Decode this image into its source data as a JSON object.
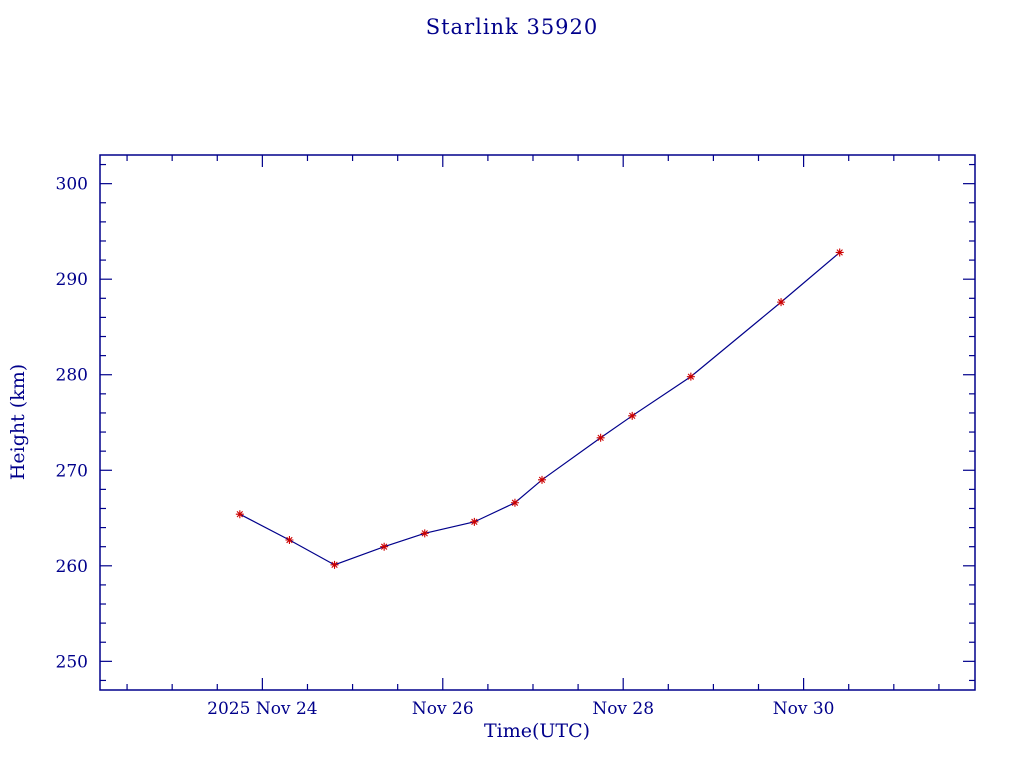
{
  "page": {
    "background": "#ffffff"
  },
  "chart_data": {
    "type": "line",
    "title": "Starlink 35920",
    "xlabel": "Time(UTC)",
    "ylabel": "Height (km)",
    "x_axis_note": "x values are day-of-month in November 2025 (UTC)",
    "xlim": [
      22.2,
      31.9
    ],
    "ylim": [
      247,
      303
    ],
    "x": [
      23.75,
      24.3,
      24.8,
      25.35,
      25.8,
      26.35,
      26.8,
      27.1,
      27.75,
      28.1,
      28.75,
      29.75,
      30.4
    ],
    "y": [
      265.4,
      262.7,
      260.1,
      262.0,
      263.4,
      264.6,
      266.6,
      269.0,
      273.4,
      275.7,
      279.8,
      287.6,
      292.8
    ],
    "x_major_ticks": [
      {
        "value": 24,
        "label": "2025 Nov 24"
      },
      {
        "value": 26,
        "label": "Nov 26"
      },
      {
        "value": 28,
        "label": "Nov 28"
      },
      {
        "value": 30,
        "label": "Nov 30"
      }
    ],
    "x_minor_step": 0.5,
    "y_major_ticks": [
      {
        "value": 250,
        "label": "250"
      },
      {
        "value": 260,
        "label": "260"
      },
      {
        "value": 270,
        "label": "270"
      },
      {
        "value": 280,
        "label": "280"
      },
      {
        "value": 290,
        "label": "290"
      },
      {
        "value": 300,
        "label": "300"
      }
    ],
    "y_minor_step": 2,
    "grid": false,
    "legend": "none",
    "marker": "asterisk",
    "line_color": "#00008b",
    "marker_color": "#cc0000",
    "axis_color": "#00008b",
    "text_color": "#00008b"
  }
}
